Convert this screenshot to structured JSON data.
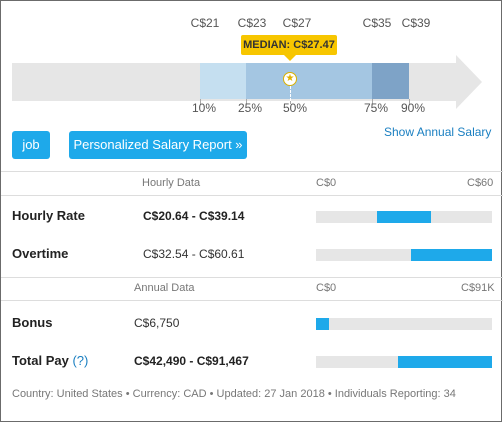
{
  "percentiles": {
    "top_labels": [
      "C$21",
      "C$23",
      "C$27",
      "C$35",
      "C$39"
    ],
    "bottom_labels": [
      "10%",
      "25%",
      "50%",
      "75%",
      "90%"
    ],
    "median_label": "MEDIAN: C$27.47",
    "median_icon": "star-icon",
    "colors": {
      "track": "#e6e6e6",
      "p10_25": "#c5dff0",
      "p25_75": "#a4c6e2",
      "p75_90": "#7ea3c7",
      "median": "#f7c600"
    }
  },
  "buttons": {
    "job": "job",
    "report": "Personalized Salary Report »"
  },
  "show_annual_salary": "Show Annual Salary",
  "hourly": {
    "header": "Hourly Data",
    "scale_min": "C$0",
    "scale_max": "C$60",
    "rows": [
      {
        "label": "Hourly Rate",
        "value": "C$20.64 - C$39.14",
        "range": [
          20.64,
          39.14
        ],
        "max": 60
      },
      {
        "label": "Overtime",
        "value": "C$32.54 - C$60.61",
        "range": [
          32.54,
          60.61
        ],
        "max": 60
      }
    ]
  },
  "annual": {
    "header": "Annual Data",
    "scale_min": "C$0",
    "scale_max": "C$91K",
    "rows": [
      {
        "label": "Bonus",
        "value": "C$6,750",
        "range": [
          0,
          6750
        ],
        "max": 91467
      },
      {
        "label": "Total Pay",
        "help": "(?)",
        "value": "C$42,490 - C$91,467",
        "range": [
          42490,
          91467
        ],
        "max": 91467
      }
    ]
  },
  "footer": "Country: United States • Currency: CAD • Updated: 27 Jan 2018 • Individuals Reporting: 34",
  "accent_color": "#1ea9ea"
}
